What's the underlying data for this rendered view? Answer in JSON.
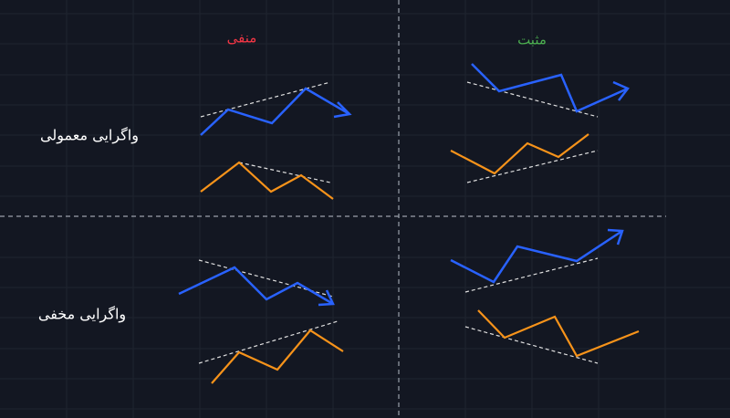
{
  "columns": [
    {
      "label": "منفی"
    },
    {
      "label": "مثبت"
    }
  ],
  "rows": [
    {
      "label": "واگرایی معمولی"
    },
    {
      "label": "واگرایی مخفی"
    }
  ]
}
